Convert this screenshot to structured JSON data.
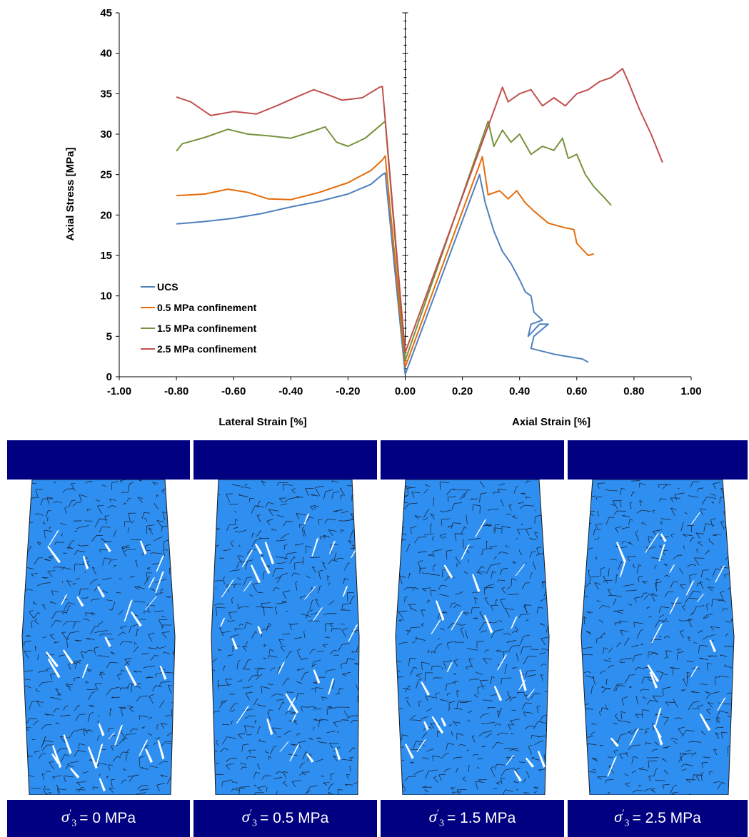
{
  "chart_data": {
    "type": "line",
    "ylabel": "Axial Stress [MPa]",
    "xlabel_left": "Lateral Strain [%]",
    "xlabel_right": "Axial Strain [%]",
    "xlim": [
      -1.0,
      1.0
    ],
    "ylim": [
      0,
      45
    ],
    "x_ticks": [
      "-1.00",
      "-0.80",
      "-0.60",
      "-0.40",
      "-0.20",
      "0.00",
      "0.20",
      "0.40",
      "0.60",
      "0.80",
      "1.00"
    ],
    "y_ticks": [
      "0",
      "5",
      "10",
      "15",
      "20",
      "25",
      "30",
      "35",
      "40",
      "45"
    ],
    "grid": false,
    "legend_position": "bottom-left",
    "series": [
      {
        "name": "UCS",
        "color": "#4F81BD",
        "lateral": {
          "x": [
            -0.8,
            -0.7,
            -0.6,
            -0.5,
            -0.4,
            -0.3,
            -0.2,
            -0.12,
            -0.08,
            -0.07,
            0.0
          ],
          "y": [
            18.9,
            19.2,
            19.6,
            20.2,
            21.0,
            21.7,
            22.6,
            23.8,
            25.0,
            25.2,
            0.3
          ]
        },
        "axial": {
          "x": [
            0.0,
            0.26,
            0.28,
            0.31,
            0.34,
            0.37,
            0.4,
            0.42,
            0.44,
            0.45,
            0.48,
            0.44,
            0.43,
            0.47,
            0.5,
            0.45,
            0.44,
            0.52,
            0.55,
            0.62,
            0.64
          ],
          "y": [
            0.3,
            25.0,
            21.5,
            18.0,
            15.5,
            14.0,
            12.0,
            10.5,
            10.0,
            8.0,
            7.0,
            6.5,
            5.0,
            6.5,
            6.5,
            5.0,
            3.5,
            2.8,
            2.6,
            2.2,
            1.8
          ]
        }
      },
      {
        "name": "0.5 MPa confinement",
        "color": "#E46C0A",
        "lateral": {
          "x": [
            -0.8,
            -0.7,
            -0.62,
            -0.55,
            -0.48,
            -0.4,
            -0.3,
            -0.2,
            -0.12,
            -0.08,
            -0.07,
            0.0
          ],
          "y": [
            22.4,
            22.6,
            23.2,
            22.8,
            22.0,
            21.9,
            22.8,
            24.0,
            25.5,
            26.8,
            27.3,
            1.2
          ]
        },
        "axial": {
          "x": [
            0.0,
            0.27,
            0.29,
            0.33,
            0.36,
            0.39,
            0.42,
            0.45,
            0.5,
            0.55,
            0.59,
            0.6,
            0.64,
            0.66
          ],
          "y": [
            1.2,
            27.2,
            22.5,
            23.0,
            22.0,
            23.0,
            21.5,
            20.5,
            19.0,
            18.5,
            18.2,
            16.5,
            15.0,
            15.2
          ]
        }
      },
      {
        "name": "1.5 MPa confinement",
        "color": "#77933C",
        "lateral": {
          "x": [
            -0.8,
            -0.78,
            -0.7,
            -0.62,
            -0.55,
            -0.48,
            -0.4,
            -0.32,
            -0.28,
            -0.24,
            -0.2,
            -0.14,
            -0.09,
            -0.07,
            0.0
          ],
          "y": [
            27.9,
            28.8,
            29.6,
            30.6,
            30.0,
            29.8,
            29.5,
            30.4,
            30.9,
            29.0,
            28.5,
            29.5,
            31.0,
            31.6,
            2.0
          ]
        },
        "axial": {
          "x": [
            0.0,
            0.29,
            0.31,
            0.34,
            0.37,
            0.4,
            0.44,
            0.48,
            0.52,
            0.55,
            0.57,
            0.6,
            0.63,
            0.66,
            0.7,
            0.72
          ],
          "y": [
            2.0,
            31.6,
            28.5,
            30.5,
            29.0,
            30.0,
            27.5,
            28.5,
            28.0,
            29.5,
            27.0,
            27.5,
            25.0,
            23.5,
            22.0,
            21.2
          ]
        }
      },
      {
        "name": "2.5 MPa confinement",
        "color": "#C0504D",
        "lateral": {
          "x": [
            -0.8,
            -0.75,
            -0.68,
            -0.6,
            -0.52,
            -0.45,
            -0.38,
            -0.32,
            -0.28,
            -0.22,
            -0.15,
            -0.09,
            -0.08,
            0.0
          ],
          "y": [
            34.6,
            34.0,
            32.3,
            32.8,
            32.5,
            33.5,
            34.6,
            35.5,
            35.0,
            34.2,
            34.5,
            35.8,
            35.9,
            3.0
          ]
        },
        "axial": {
          "x": [
            0.0,
            0.34,
            0.36,
            0.4,
            0.44,
            0.48,
            0.52,
            0.56,
            0.6,
            0.64,
            0.68,
            0.72,
            0.76,
            0.78,
            0.82,
            0.86,
            0.9
          ],
          "y": [
            3.0,
            35.8,
            34.0,
            35.0,
            35.5,
            33.5,
            34.5,
            33.5,
            35.0,
            35.5,
            36.5,
            37.0,
            38.1,
            36.5,
            33.0,
            30.0,
            26.5
          ]
        }
      }
    ]
  },
  "panels": [
    {
      "sym": "σ",
      "sup": "′",
      "sub": "3",
      "value": " = 0 MPa"
    },
    {
      "sym": "σ",
      "sup": "′",
      "sub": "3",
      "value": " = 0.5 MPa"
    },
    {
      "sym": "σ",
      "sup": "′",
      "sub": "3",
      "value": " = 1.5 MPa"
    },
    {
      "sym": "σ",
      "sup": "′",
      "sub": "3",
      "value": " = 2.5 MPa"
    }
  ],
  "colors": {
    "platen": "#000080",
    "sample": "#2E8FF0",
    "crack": "#ffffff"
  }
}
